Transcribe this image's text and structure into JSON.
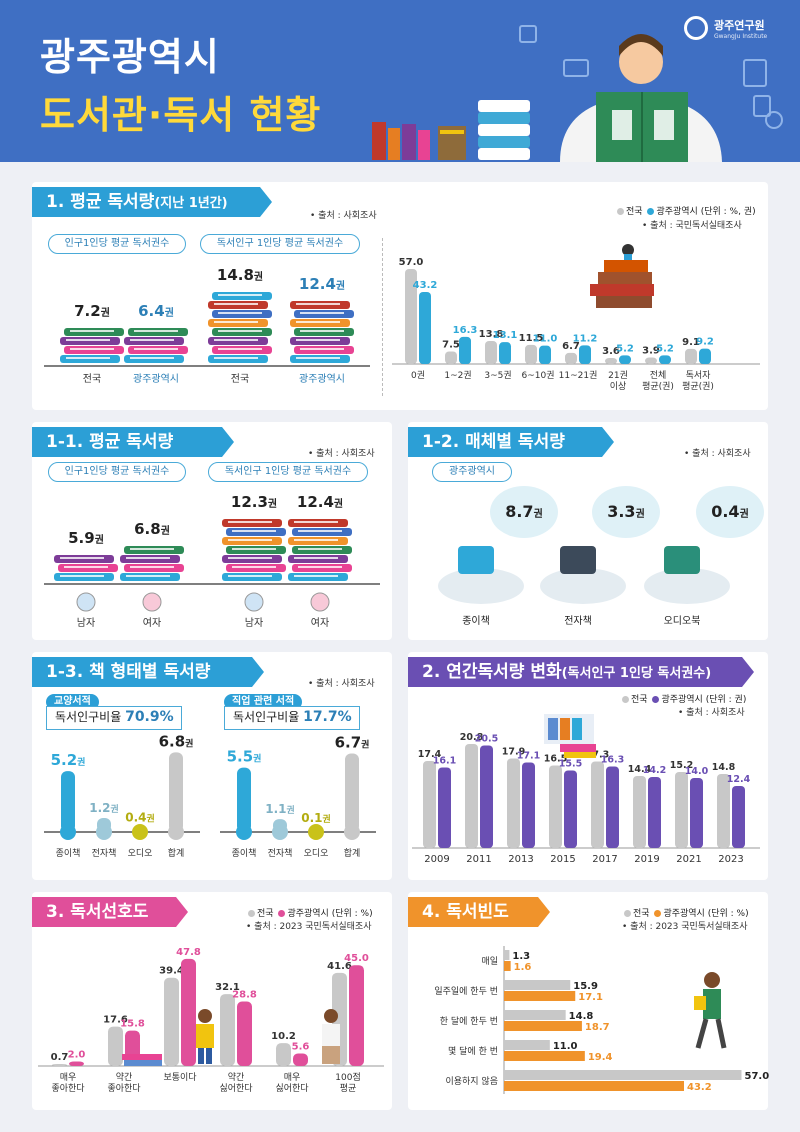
{
  "header": {
    "title_line1": "광주광역시",
    "title_line2": "도서관·독서 현황",
    "logo_name": "광주연구원",
    "logo_sub": "GwangJu Institute"
  },
  "colors": {
    "national": "#c8c8c8",
    "gwangju_teal": "#2ea8d8",
    "gwangju_purple": "#6a4fb3",
    "gwangju_pink": "#e04f9a",
    "gwangju_orange": "#f0932b",
    "brand_blue": "#3f6fc3"
  },
  "legend": {
    "national": "전국",
    "gwangju": "광주광역시"
  },
  "s1": {
    "title": "1. 평균 독서량",
    "title_sub": "(지난 1년간)",
    "source_left": "• 출처 : 사회조사",
    "pill_a": "인구1인당 평균 독서권수",
    "pill_b": "독서인구 1인당 평균 독서권수",
    "books": [
      {
        "value": "7.2",
        "label": "전국"
      },
      {
        "value": "6.4",
        "label": "광주광역시"
      },
      {
        "value": "14.8",
        "label": "전국"
      },
      {
        "value": "12.4",
        "label": "광주광역시"
      }
    ],
    "unit_book": "권",
    "legend_note": "(단위 : %, 권)",
    "source_right": "• 출처 : 국민독서실태조사"
  },
  "s11": {
    "title": "1-1. 평균 독서량",
    "source": "• 출처 : 사회조사",
    "pill_a": "인구1인당 평균 독서권수",
    "pill_b": "독서인구 1인당 평균 독서권수",
    "books": [
      {
        "value": "5.9",
        "label": "남자"
      },
      {
        "value": "6.8",
        "label": "여자"
      },
      {
        "value": "12.3",
        "label": "남자"
      },
      {
        "value": "12.4",
        "label": "여자"
      }
    ]
  },
  "s12": {
    "title": "1-2. 매체별 독서량",
    "source": "• 출처 : 사회조사",
    "pill": "광주광역시",
    "items": [
      {
        "value": "8.7",
        "label": "종이책"
      },
      {
        "value": "3.3",
        "label": "전자책"
      },
      {
        "value": "0.4",
        "label": "오디오북"
      }
    ]
  },
  "s13": {
    "title": "1-3. 책 형태별 독서량",
    "source": "• 출처 : 사회조사",
    "groups": [
      {
        "tag": "교양서적",
        "ratio_label": "독서인구비율",
        "ratio": "70.9%"
      },
      {
        "tag": "직업 관련 서적",
        "ratio_label": "독서인구비율",
        "ratio": "17.7%"
      }
    ],
    "labels": [
      "종이책",
      "전자책",
      "오디오",
      "합계"
    ]
  },
  "s2": {
    "title": "2. 연간독서량 변화",
    "title_sub": "(독서인구 1인당 독서권수)",
    "legend_note": "(단위 : 권)",
    "source": "• 출처 : 사회조사"
  },
  "s3": {
    "title": "3. 독서선호도",
    "legend_note": "(단위 : %)",
    "source": "• 출처 : 2023 국민독서실태조사"
  },
  "s4": {
    "title": "4. 독서빈도",
    "legend_note": "(단위 : %)",
    "source": "• 출처 : 2023 국민독서실태조사"
  },
  "chart_data": [
    {
      "id": "s1",
      "type": "bar",
      "categories": [
        "0권",
        "1~2권",
        "3~5권",
        "6~10권",
        "11~21권",
        "21권\n이상",
        "전체\n평균(권)",
        "독서자\n평균(권)"
      ],
      "series": [
        {
          "name": "전국",
          "values": [
            57.0,
            7.5,
            13.8,
            11.5,
            6.7,
            3.6,
            3.9,
            9.1
          ],
          "labels": [
            "57.0",
            "7.5",
            "13.8",
            "11.5",
            "6.7",
            "3.6",
            "3.9",
            "9.1"
          ]
        },
        {
          "name": "광주광역시",
          "values": [
            43.2,
            16.3,
            13.1,
            11.0,
            11.2,
            5.2,
            5.2,
            9.2
          ],
          "labels": [
            "43.2",
            "16.3",
            "13.1",
            "11.0",
            "11.2",
            "5.2",
            "5.2",
            "9.2"
          ]
        }
      ],
      "ylim": [
        0,
        60
      ]
    },
    {
      "id": "s13a",
      "type": "bar",
      "categories": [
        "종이책",
        "전자책",
        "오디오",
        "합계"
      ],
      "values": [
        5.2,
        1.2,
        0.4,
        6.8
      ],
      "labels": [
        "5.2",
        "1.2",
        "0.4",
        "6.8"
      ],
      "unit": "권",
      "ylim": [
        0,
        7
      ]
    },
    {
      "id": "s13b",
      "type": "bar",
      "categories": [
        "종이책",
        "전자책",
        "오디오",
        "합계"
      ],
      "values": [
        5.5,
        1.1,
        0.1,
        6.7
      ],
      "labels": [
        "5.5",
        "1.1",
        "0.1",
        "6.7"
      ],
      "unit": "권",
      "ylim": [
        0,
        7
      ]
    },
    {
      "id": "s2",
      "type": "bar",
      "categories": [
        "2009",
        "2011",
        "2013",
        "2015",
        "2017",
        "2019",
        "2021",
        "2023"
      ],
      "series": [
        {
          "name": "전국",
          "values": [
            17.4,
            20.8,
            17.9,
            16.5,
            17.3,
            14.4,
            15.2,
            14.8
          ],
          "labels": [
            "17.4",
            "20.8",
            "17.9",
            "16.5",
            "17.3",
            "14.4",
            "15.2",
            "14.8"
          ]
        },
        {
          "name": "광주광역시",
          "values": [
            16.1,
            20.5,
            17.1,
            15.5,
            16.3,
            14.2,
            14.0,
            12.4
          ],
          "labels": [
            "16.1",
            "20.5",
            "17.1",
            "15.5",
            "16.3",
            "14.2",
            "14.0",
            "12.4"
          ]
        }
      ],
      "ylim": [
        0,
        22
      ]
    },
    {
      "id": "s3",
      "type": "bar",
      "categories": [
        "매우\n좋아한다",
        "약간\n좋아한다",
        "보통이다",
        "약간\n싫어한다",
        "매우\n싫어한다",
        "100점\n평균"
      ],
      "series": [
        {
          "name": "전국",
          "values": [
            0.7,
            17.6,
            39.4,
            32.1,
            10.2,
            41.6
          ],
          "labels": [
            "0.7",
            "17.6",
            "39.4",
            "32.1",
            "10.2",
            "41.6"
          ]
        },
        {
          "name": "광주광역시",
          "values": [
            2.0,
            15.8,
            47.8,
            28.8,
            5.6,
            45.0
          ],
          "labels": [
            "2.0",
            "15.8",
            "47.8",
            "28.8",
            "5.6",
            "45.0"
          ]
        }
      ],
      "ylim": [
        0,
        50
      ]
    },
    {
      "id": "s4",
      "type": "bar",
      "orientation": "horizontal",
      "categories": [
        "매일",
        "일주일에 한두 번",
        "한 달에 한두 번",
        "몇 달에 한 번",
        "이용하지 않음"
      ],
      "series": [
        {
          "name": "전국",
          "values": [
            1.3,
            15.9,
            14.8,
            11.0,
            57.0
          ],
          "labels": [
            "1.3",
            "15.9",
            "14.8",
            "11.0",
            "57.0"
          ]
        },
        {
          "name": "광주광역시",
          "values": [
            1.6,
            17.1,
            18.7,
            19.4,
            43.2
          ],
          "labels": [
            "1.6",
            "17.1",
            "18.7",
            "19.4",
            "43.2"
          ]
        }
      ],
      "xlim": [
        0,
        60
      ]
    }
  ]
}
